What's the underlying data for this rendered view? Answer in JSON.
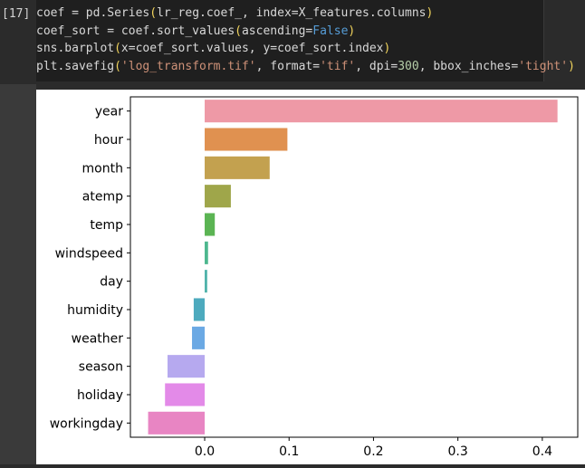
{
  "cell": {
    "prompt": "[17]",
    "code_lines": [
      [
        {
          "t": "coef = pd.Series",
          "c": "plain"
        },
        {
          "t": "(",
          "c": "paren"
        },
        {
          "t": "lr_reg.coef_, index=X_features.columns",
          "c": "plain"
        },
        {
          "t": ")",
          "c": "paren"
        }
      ],
      [
        {
          "t": "coef_sort = coef.sort_values",
          "c": "plain"
        },
        {
          "t": "(",
          "c": "paren"
        },
        {
          "t": "ascending=",
          "c": "plain"
        },
        {
          "t": "False",
          "c": "kw"
        },
        {
          "t": ")",
          "c": "paren"
        }
      ],
      [
        {
          "t": "sns.barplot",
          "c": "plain"
        },
        {
          "t": "(",
          "c": "paren"
        },
        {
          "t": "x=coef_sort.values, y=coef_sort.index",
          "c": "plain"
        },
        {
          "t": ")",
          "c": "paren"
        }
      ],
      [
        {
          "t": "plt.savefig",
          "c": "plain"
        },
        {
          "t": "(",
          "c": "paren"
        },
        {
          "t": "'log_transform.tif'",
          "c": "str"
        },
        {
          "t": ", format=",
          "c": "plain"
        },
        {
          "t": "'tif'",
          "c": "str"
        },
        {
          "t": ", dpi=",
          "c": "plain"
        },
        {
          "t": "300",
          "c": "num"
        },
        {
          "t": ", bbox_inches=",
          "c": "plain"
        },
        {
          "t": "'tight'",
          "c": "str"
        },
        {
          "t": ")",
          "c": "paren"
        }
      ]
    ]
  },
  "chart_data": {
    "type": "bar",
    "orientation": "horizontal",
    "categories": [
      "year",
      "hour",
      "month",
      "atemp",
      "temp",
      "windspeed",
      "day",
      "humidity",
      "weather",
      "season",
      "holiday",
      "workingday"
    ],
    "values": [
      0.418,
      0.098,
      0.077,
      0.031,
      0.012,
      0.004,
      0.003,
      -0.013,
      -0.015,
      -0.044,
      -0.047,
      -0.067
    ],
    "colors": [
      "#ee99a6",
      "#e09150",
      "#c3a14f",
      "#9fa64a",
      "#5bb453",
      "#4db78e",
      "#4fb2aa",
      "#4daabe",
      "#6ba9e4",
      "#b6a9ef",
      "#e38ae8",
      "#e885c3"
    ],
    "xlim": [
      -0.088,
      0.442
    ],
    "xticks": [
      0.0,
      0.1,
      0.2,
      0.3,
      0.4
    ],
    "xtick_labels": [
      "0.0",
      "0.1",
      "0.2",
      "0.3",
      "0.4"
    ],
    "title": "",
    "xlabel": "",
    "ylabel": ""
  }
}
